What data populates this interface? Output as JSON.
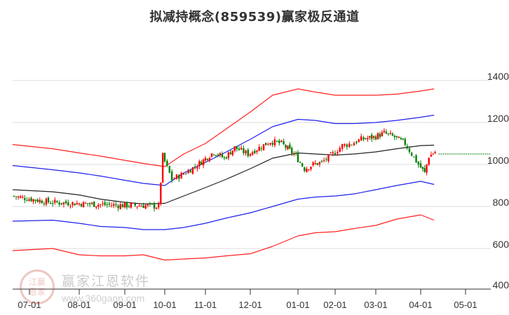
{
  "title": "拟减持概念(859539)赢家极反通道",
  "watermark": {
    "seal_text": "江赢恩家",
    "name": "赢家江恩软件",
    "url": "www.360gann.com"
  },
  "colors": {
    "outer_band": "#ff2020",
    "inner_band": "#2020ee",
    "mid_line": "#222222",
    "candle_up": "#ff0000",
    "candle_down": "#008000",
    "projection": "#008000",
    "grid": "#dddddd",
    "axis": "#333333"
  },
  "chart_data": {
    "type": "candlestick",
    "title": "拟减持概念(859539)赢家极反通道",
    "xlabel": "",
    "ylabel": "",
    "ylim": [
      400,
      1500
    ],
    "y_ticks": [
      400,
      600,
      800,
      1000,
      1200,
      1400
    ],
    "x_ticks": [
      "07-01",
      "08-01",
      "09-01",
      "10-01",
      "11-01",
      "12-01",
      "01-01",
      "02-01",
      "03-01",
      "04-01",
      "05-01"
    ],
    "grid": true,
    "legend": "none",
    "series": [
      {
        "name": "outer_upper_band",
        "color": "red",
        "x": [
          "07-01",
          "07-15",
          "08-01",
          "08-15",
          "09-01",
          "09-15",
          "10-01",
          "10-15",
          "11-01",
          "11-15",
          "12-01",
          "12-15",
          "01-01",
          "01-15",
          "02-01",
          "02-15",
          "03-01",
          "03-15",
          "04-01",
          "04-10"
        ],
        "values": [
          1095,
          1075,
          1055,
          1040,
          1020,
          1005,
          990,
          1050,
          1100,
          1170,
          1250,
          1330,
          1360,
          1345,
          1330,
          1330,
          1330,
          1335,
          1350,
          1360
        ]
      },
      {
        "name": "inner_upper_band",
        "color": "blue",
        "x": [
          "07-01",
          "07-15",
          "08-01",
          "08-15",
          "09-01",
          "09-15",
          "10-01",
          "10-15",
          "11-01",
          "11-15",
          "12-01",
          "12-15",
          "01-01",
          "01-15",
          "02-01",
          "02-15",
          "03-01",
          "03-15",
          "04-01",
          "04-10"
        ],
        "values": [
          995,
          975,
          960,
          945,
          925,
          910,
          900,
          960,
          1010,
          1060,
          1120,
          1180,
          1215,
          1210,
          1195,
          1195,
          1200,
          1210,
          1225,
          1235
        ]
      },
      {
        "name": "middle_line",
        "color": "black",
        "x": [
          "07-01",
          "07-15",
          "08-01",
          "08-15",
          "09-01",
          "09-15",
          "10-01",
          "10-15",
          "11-01",
          "11-15",
          "12-01",
          "12-15",
          "01-01",
          "01-15",
          "02-01",
          "02-15",
          "03-01",
          "03-15",
          "04-01",
          "04-10"
        ],
        "values": [
          880,
          870,
          855,
          835,
          820,
          812,
          815,
          850,
          890,
          930,
          980,
          1030,
          1055,
          1050,
          1045,
          1050,
          1060,
          1075,
          1090,
          1092
        ]
      },
      {
        "name": "inner_lower_band",
        "color": "blue",
        "x": [
          "07-01",
          "07-15",
          "08-01",
          "08-15",
          "09-01",
          "09-15",
          "10-01",
          "10-15",
          "11-01",
          "11-15",
          "12-01",
          "12-15",
          "01-01",
          "01-15",
          "02-01",
          "02-15",
          "03-01",
          "03-15",
          "04-01",
          "04-10"
        ],
        "values": [
          730,
          735,
          720,
          705,
          700,
          690,
          690,
          700,
          720,
          745,
          770,
          800,
          835,
          845,
          850,
          860,
          880,
          900,
          920,
          905
        ]
      },
      {
        "name": "outer_lower_band",
        "color": "red",
        "x": [
          "07-01",
          "07-15",
          "08-01",
          "08-15",
          "09-01",
          "09-15",
          "10-01",
          "10-15",
          "11-01",
          "11-15",
          "12-01",
          "12-15",
          "01-01",
          "01-15",
          "02-01",
          "02-15",
          "03-01",
          "03-15",
          "04-01",
          "04-10"
        ],
        "values": [
          590,
          600,
          570,
          565,
          565,
          570,
          545,
          550,
          555,
          565,
          575,
          610,
          660,
          675,
          680,
          695,
          710,
          740,
          760,
          735
        ]
      },
      {
        "name": "close_price",
        "color": "red/green candles",
        "x": [
          "07-01",
          "07-15",
          "08-01",
          "08-15",
          "09-01",
          "09-15",
          "09-28",
          "10-01",
          "10-08",
          "10-15",
          "10-25",
          "11-01",
          "11-08",
          "11-15",
          "11-22",
          "12-01",
          "12-08",
          "12-15",
          "12-22",
          "01-01",
          "01-08",
          "01-15",
          "01-22",
          "02-01",
          "02-08",
          "02-15",
          "02-22",
          "03-01",
          "03-08",
          "03-15",
          "03-22",
          "04-01",
          "04-05",
          "04-08",
          "04-12"
        ],
        "values": [
          850,
          820,
          815,
          810,
          805,
          805,
          800,
          1040,
          930,
          950,
          990,
          1020,
          1060,
          1030,
          1080,
          1050,
          1080,
          1110,
          1100,
          1040,
          980,
          1000,
          1010,
          1050,
          1090,
          1100,
          1120,
          1130,
          1150,
          1130,
          1100,
          1000,
          960,
          1040,
          1060
        ]
      },
      {
        "name": "projection",
        "color": "green dashed",
        "x": [
          "04-12",
          "05-01",
          "end"
        ],
        "values": [
          1050,
          1050,
          1050
        ]
      }
    ]
  },
  "y_axis": {
    "labels": [
      "1400",
      "1200",
      "1000",
      "800",
      "600",
      "400"
    ]
  },
  "x_axis": {
    "labels": [
      "07-01",
      "08-01",
      "09-01",
      "10-01",
      "11-01",
      "12-01",
      "01-01",
      "02-01",
      "03-01",
      "04-01",
      "05-01"
    ]
  }
}
